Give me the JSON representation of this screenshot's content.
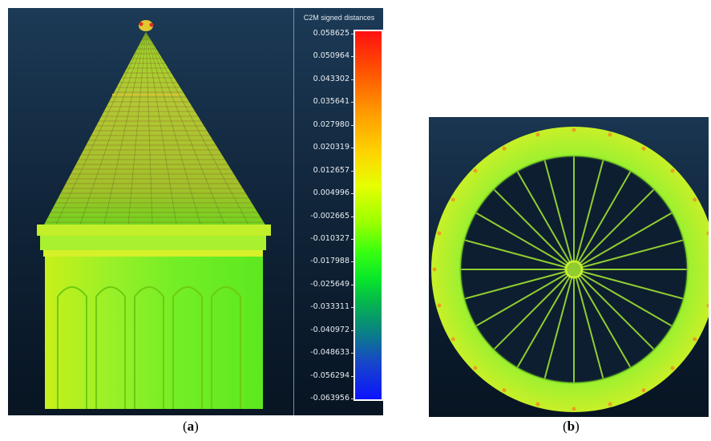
{
  "colorscale": {
    "title": "C2M signed distances",
    "ticks": [
      "0.058625",
      "0.050964",
      "0.043302",
      "0.035641",
      "0.027980",
      "0.020319",
      "0.012657",
      "0.004996",
      "-0.002665",
      "-0.010327",
      "-0.017988",
      "-0.025649",
      "-0.033311",
      "-0.040972",
      "-0.048633",
      "-0.056294",
      "-0.063956"
    ]
  },
  "captions": {
    "a": {
      "open": "(",
      "letter": "a",
      "close": ")"
    },
    "b": {
      "open": "(",
      "letter": "b",
      "close": ")"
    }
  }
}
